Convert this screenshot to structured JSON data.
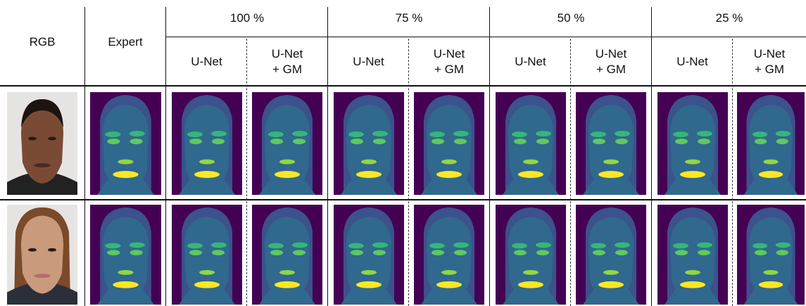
{
  "header": {
    "rgb": "RGB",
    "expert": "Expert",
    "groups": [
      "100 %",
      "75 %",
      "50 %",
      "25 %"
    ],
    "sub_unet": "U-Net",
    "sub_unet_gm_line1": "U-Net",
    "sub_unet_gm_line2": "+ GM"
  },
  "rows": [
    {
      "subject": "person-1"
    },
    {
      "subject": "person-2"
    }
  ],
  "colors": {
    "background": "#440154",
    "hair": "#3b528b",
    "skin": "#31688e",
    "eyebrow": "#35b779",
    "eye": "#5ec962",
    "nose": "#90d743",
    "lips": "#fde725"
  }
}
